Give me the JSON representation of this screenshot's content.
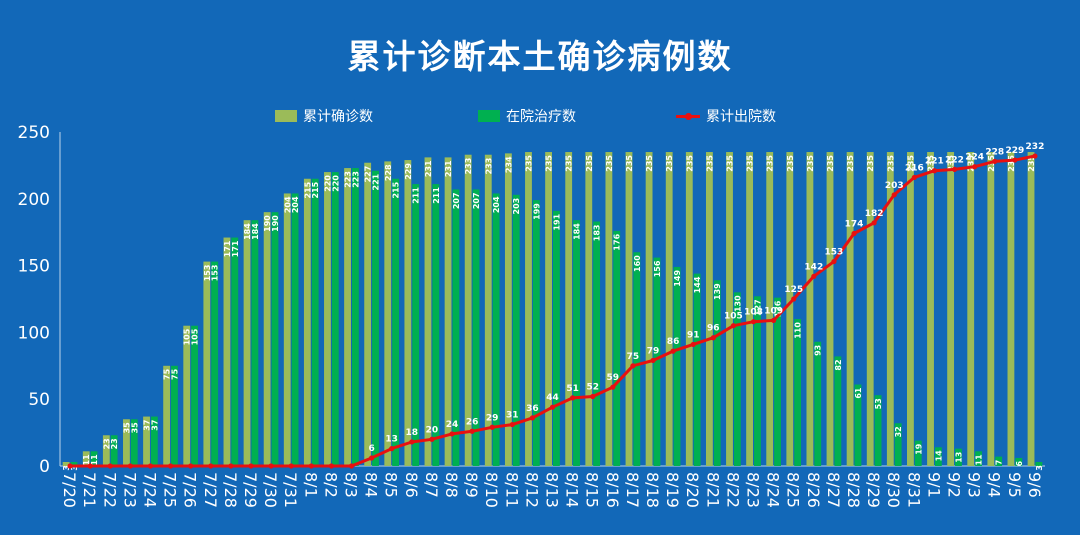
{
  "chart_data": {
    "type": "bar",
    "title": "累计诊断本土确诊病例数",
    "legend": [
      "累计确诊数",
      "在院治疗数",
      "累计出院数"
    ],
    "categories": [
      "7/20",
      "7/21",
      "7/22",
      "7/23",
      "7/24",
      "7/25",
      "7/26",
      "7/27",
      "7/28",
      "7/29",
      "7/30",
      "7/31",
      "8/1",
      "8/2",
      "8/3",
      "8/4",
      "8/5",
      "8/6",
      "8/7",
      "8/8",
      "8/9",
      "8/10",
      "8/11",
      "8/12",
      "8/13",
      "8/14",
      "8/15",
      "8/16",
      "8/17",
      "8/18",
      "8/19",
      "8/20",
      "8/21",
      "8/22",
      "8/23",
      "8/24",
      "8/25",
      "8/26",
      "8/27",
      "8/28",
      "8/29",
      "8/30",
      "8/31",
      "9/1",
      "9/2",
      "9/3",
      "9/4",
      "9/5",
      "9/6"
    ],
    "series": [
      {
        "name": "累计确诊数",
        "type": "bar",
        "color": "#9bbb59",
        "values": [
          3,
          11,
          23,
          35,
          37,
          75,
          105,
          153,
          171,
          184,
          190,
          204,
          215,
          220,
          223,
          227,
          228,
          229,
          231,
          231,
          233,
          233,
          234,
          235,
          235,
          235,
          235,
          235,
          235,
          235,
          235,
          235,
          235,
          235,
          235,
          235,
          235,
          235,
          235,
          235,
          235,
          235,
          235,
          235,
          235,
          235,
          235,
          235,
          235
        ]
      },
      {
        "name": "在院治疗数",
        "type": "bar",
        "color": "#00b050",
        "values": [
          3,
          11,
          23,
          35,
          37,
          75,
          105,
          153,
          171,
          184,
          190,
          204,
          215,
          220,
          223,
          221,
          215,
          211,
          211,
          207,
          207,
          204,
          203,
          199,
          191,
          184,
          183,
          176,
          160,
          156,
          149,
          144,
          139,
          130,
          127,
          126,
          110,
          93,
          82,
          61,
          53,
          32,
          19,
          14,
          13,
          11,
          7,
          6,
          3
        ]
      },
      {
        "name": "累计出院数",
        "type": "line",
        "color": "#e81010",
        "values": [
          0,
          0,
          0,
          0,
          0,
          0,
          0,
          0,
          0,
          0,
          0,
          0,
          0,
          0,
          0,
          6,
          13,
          18,
          20,
          24,
          26,
          29,
          31,
          36,
          44,
          51,
          52,
          59,
          75,
          79,
          86,
          91,
          96,
          105,
          108,
          109,
          125,
          142,
          153,
          174,
          182,
          203,
          216,
          221,
          222,
          224,
          228,
          229,
          232
        ]
      }
    ],
    "y_ticks": [
      "0",
      "50",
      "100",
      "150",
      "200",
      "250"
    ],
    "ylim": [
      0,
      250
    ],
    "grid": false,
    "legend_position": "top"
  }
}
